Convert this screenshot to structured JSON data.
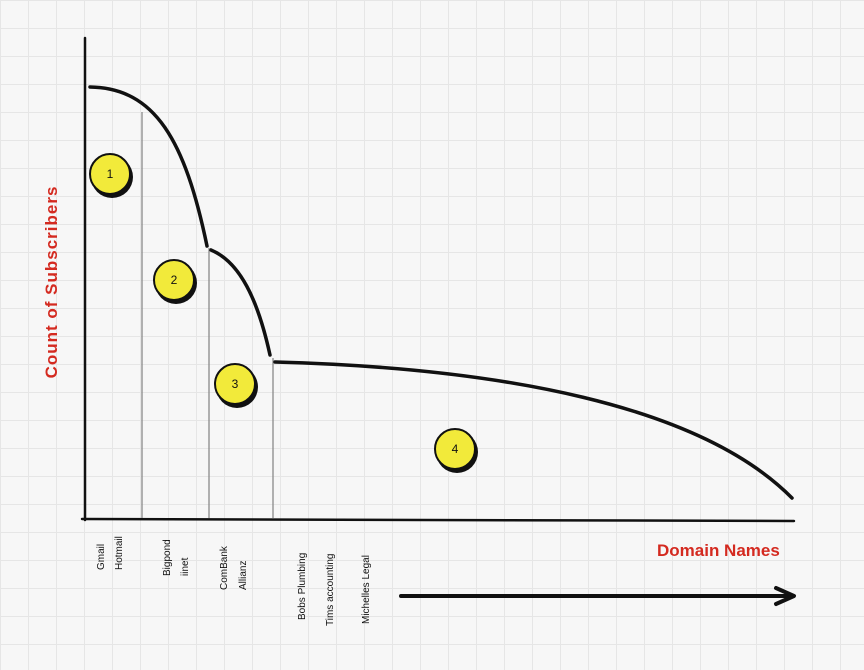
{
  "axes": {
    "y_label": "Count of Subscribers",
    "x_label": "Domain Names"
  },
  "colors": {
    "label": "#d42a20",
    "badge": "#f2ea3a",
    "line": "#111111",
    "divider": "#8a8a8a"
  },
  "segments": [
    {
      "number": "1",
      "domains": [
        "Gmail",
        "Hotmail"
      ]
    },
    {
      "number": "2",
      "domains": [
        "Bigpond",
        "iinet"
      ]
    },
    {
      "number": "3",
      "domains": [
        "ComBank",
        "Allianz"
      ]
    },
    {
      "number": "4",
      "domains": [
        "Bobs Plumbing",
        "Tims accounting",
        "Michelles Legal"
      ]
    }
  ]
}
